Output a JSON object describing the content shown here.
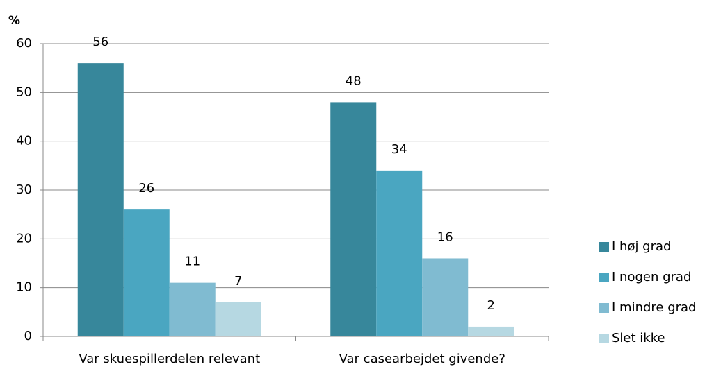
{
  "chart_data": {
    "type": "bar",
    "y_label": "%",
    "categories": [
      "Var skuespillerdelen relevant",
      "Var casearbejdet givende?"
    ],
    "series": [
      {
        "name": "I høj grad",
        "color": "#37879b",
        "values": [
          56,
          48
        ]
      },
      {
        "name": "I nogen grad",
        "color": "#4aa6c1",
        "values": [
          26,
          34
        ]
      },
      {
        "name": "I mindre grad",
        "color": "#80bbd1",
        "values": [
          11,
          16
        ]
      },
      {
        "name": "Slet ikke",
        "color": "#b6d8e2",
        "values": [
          7,
          2
        ]
      }
    ],
    "ylim": [
      0,
      60
    ],
    "yticks": [
      0,
      10,
      20,
      30,
      40,
      50,
      60
    ],
    "grid": true,
    "legend": "right"
  }
}
